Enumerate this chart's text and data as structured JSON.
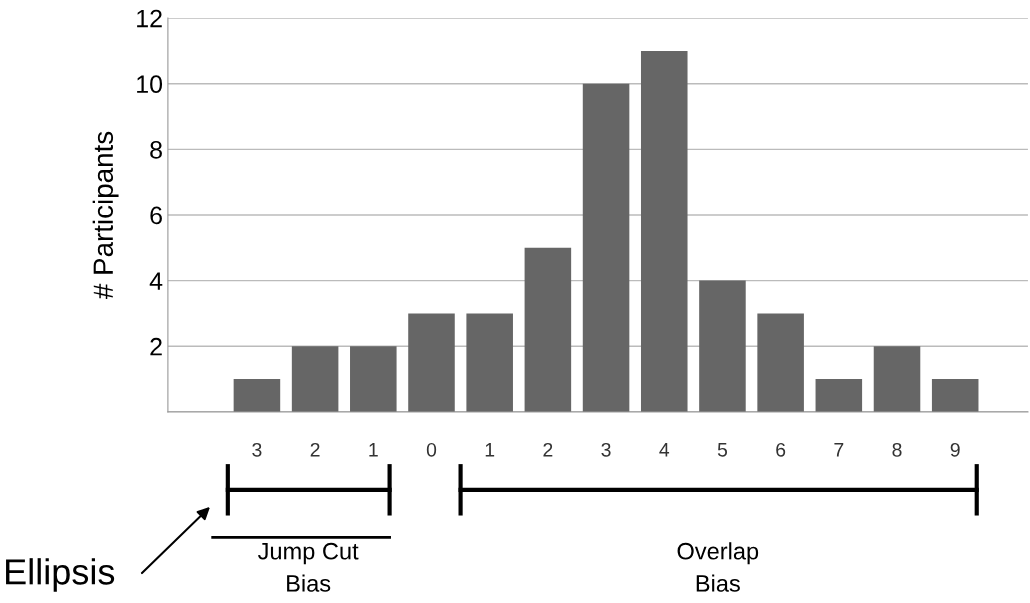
{
  "chart_data": {
    "type": "bar",
    "ylabel": "# Participants",
    "categories": [
      "3",
      "2",
      "1",
      "0",
      "1",
      "2",
      "3",
      "4",
      "5",
      "6",
      "7",
      "8",
      "9"
    ],
    "values": [
      1,
      2,
      2,
      3,
      3,
      5,
      10,
      11,
      4,
      3,
      1,
      2,
      1
    ],
    "color": "#666666",
    "ylim": [
      0,
      12
    ],
    "yticks": [
      {
        "value": 0,
        "label": null
      },
      2,
      4,
      6,
      8,
      10,
      12
    ],
    "grid": "y",
    "legend": false,
    "annotations": [
      "Jump Cut\nBias",
      "Overlap\nBias",
      "Ellipsis"
    ]
  }
}
